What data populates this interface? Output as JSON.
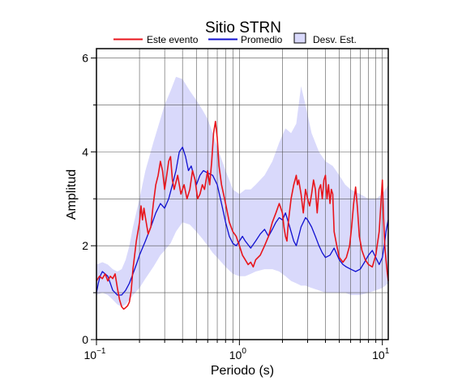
{
  "chart_data": {
    "type": "line",
    "title": "Sitio STRN",
    "xlabel": "Periodo (s)",
    "ylabel": "Amplitud",
    "x_scale": "log",
    "xlim": [
      0.1,
      11
    ],
    "ylim": [
      0,
      6.2
    ],
    "x_ticks": [
      {
        "value": 0.1,
        "base": "10",
        "exp": "−1"
      },
      {
        "value": 1,
        "base": "10",
        "exp": "0"
      },
      {
        "value": 10,
        "base": "10",
        "exp": "1"
      }
    ],
    "y_ticks": [
      0,
      2,
      4,
      6
    ],
    "grid": true,
    "legend_position": "top",
    "legend": [
      {
        "label": "Este evento",
        "kind": "line",
        "color": "#e8141b"
      },
      {
        "label": "Promedio",
        "kind": "line",
        "color": "#1010d0"
      },
      {
        "label": "Desv. Est.",
        "kind": "patch",
        "color": "#d9d9fb"
      }
    ],
    "band": {
      "name": "Desv. Est.",
      "color": "#d9d9fb",
      "points": [
        [
          0.1,
          0.95,
          1.6
        ],
        [
          0.11,
          1.0,
          1.65
        ],
        [
          0.12,
          0.95,
          1.6
        ],
        [
          0.13,
          0.85,
          1.5
        ],
        [
          0.14,
          0.75,
          1.45
        ],
        [
          0.15,
          0.7,
          1.5
        ],
        [
          0.16,
          0.75,
          1.7
        ],
        [
          0.17,
          0.85,
          2.0
        ],
        [
          0.18,
          0.95,
          2.4
        ],
        [
          0.2,
          1.1,
          3.0
        ],
        [
          0.22,
          1.3,
          3.6
        ],
        [
          0.25,
          1.55,
          4.2
        ],
        [
          0.28,
          1.8,
          4.7
        ],
        [
          0.3,
          1.9,
          5.0
        ],
        [
          0.33,
          2.05,
          5.3
        ],
        [
          0.36,
          2.3,
          5.6
        ],
        [
          0.4,
          2.5,
          5.55
        ],
        [
          0.45,
          2.45,
          5.3
        ],
        [
          0.5,
          2.3,
          5.1
        ],
        [
          0.55,
          2.15,
          4.9
        ],
        [
          0.6,
          2.0,
          4.7
        ],
        [
          0.65,
          1.85,
          4.4
        ],
        [
          0.7,
          1.75,
          4.1
        ],
        [
          0.8,
          1.55,
          3.6
        ],
        [
          0.9,
          1.4,
          3.2
        ],
        [
          1.0,
          1.35,
          3.1
        ],
        [
          1.1,
          1.35,
          3.2
        ],
        [
          1.2,
          1.4,
          3.2
        ],
        [
          1.3,
          1.45,
          3.3
        ],
        [
          1.5,
          1.5,
          3.5
        ],
        [
          1.7,
          1.5,
          3.8
        ],
        [
          1.9,
          1.45,
          4.2
        ],
        [
          2.1,
          1.35,
          4.5
        ],
        [
          2.3,
          1.25,
          4.4
        ],
        [
          2.5,
          1.2,
          4.6
        ],
        [
          2.7,
          1.15,
          5.4
        ],
        [
          2.9,
          1.15,
          5.0
        ],
        [
          3.2,
          1.1,
          4.4
        ],
        [
          3.6,
          1.05,
          4.0
        ],
        [
          4.0,
          1.0,
          3.8
        ],
        [
          4.5,
          1.0,
          3.7
        ],
        [
          5.0,
          1.0,
          3.5
        ],
        [
          5.5,
          1.0,
          3.3
        ],
        [
          6.0,
          0.95,
          3.2
        ],
        [
          7.0,
          0.95,
          3.1
        ],
        [
          8.0,
          1.0,
          3.0
        ],
        [
          9.0,
          1.05,
          3.0
        ],
        [
          10.0,
          1.1,
          3.1
        ],
        [
          11.0,
          1.2,
          3.3
        ]
      ]
    },
    "series": [
      {
        "name": "Este evento",
        "color": "#e8141b",
        "points": [
          [
            0.1,
            1.25
          ],
          [
            0.105,
            1.35
          ],
          [
            0.11,
            1.3
          ],
          [
            0.115,
            1.4
          ],
          [
            0.12,
            1.25
          ],
          [
            0.125,
            1.35
          ],
          [
            0.13,
            1.3
          ],
          [
            0.135,
            1.4
          ],
          [
            0.14,
            1.1
          ],
          [
            0.145,
            0.85
          ],
          [
            0.15,
            0.7
          ],
          [
            0.155,
            0.65
          ],
          [
            0.16,
            0.68
          ],
          [
            0.165,
            0.72
          ],
          [
            0.17,
            0.8
          ],
          [
            0.175,
            1.05
          ],
          [
            0.18,
            1.5
          ],
          [
            0.185,
            1.8
          ],
          [
            0.19,
            2.1
          ],
          [
            0.2,
            2.5
          ],
          [
            0.205,
            2.85
          ],
          [
            0.21,
            2.55
          ],
          [
            0.215,
            2.8
          ],
          [
            0.22,
            2.6
          ],
          [
            0.23,
            2.25
          ],
          [
            0.24,
            2.4
          ],
          [
            0.25,
            2.9
          ],
          [
            0.26,
            3.3
          ],
          [
            0.27,
            3.5
          ],
          [
            0.28,
            3.8
          ],
          [
            0.29,
            3.6
          ],
          [
            0.3,
            3.2
          ],
          [
            0.31,
            3.5
          ],
          [
            0.32,
            3.8
          ],
          [
            0.33,
            3.9
          ],
          [
            0.34,
            3.4
          ],
          [
            0.35,
            3.2
          ],
          [
            0.37,
            3.5
          ],
          [
            0.39,
            3.1
          ],
          [
            0.41,
            3.3
          ],
          [
            0.43,
            3.0
          ],
          [
            0.45,
            3.2
          ],
          [
            0.47,
            3.6
          ],
          [
            0.49,
            3.4
          ],
          [
            0.51,
            3.0
          ],
          [
            0.53,
            3.1
          ],
          [
            0.55,
            3.3
          ],
          [
            0.57,
            3.2
          ],
          [
            0.6,
            3.6
          ],
          [
            0.62,
            3.3
          ],
          [
            0.64,
            3.8
          ],
          [
            0.66,
            4.4
          ],
          [
            0.68,
            4.65
          ],
          [
            0.7,
            4.3
          ],
          [
            0.72,
            3.7
          ],
          [
            0.75,
            3.3
          ],
          [
            0.8,
            2.9
          ],
          [
            0.85,
            2.5
          ],
          [
            0.9,
            2.3
          ],
          [
            0.95,
            2.2
          ],
          [
            1.0,
            2.0
          ],
          [
            1.05,
            1.8
          ],
          [
            1.1,
            1.7
          ],
          [
            1.15,
            1.6
          ],
          [
            1.2,
            1.65
          ],
          [
            1.25,
            1.55
          ],
          [
            1.3,
            1.7
          ],
          [
            1.4,
            1.8
          ],
          [
            1.5,
            2.0
          ],
          [
            1.6,
            2.2
          ],
          [
            1.7,
            2.5
          ],
          [
            1.8,
            2.7
          ],
          [
            1.9,
            2.9
          ],
          [
            2.0,
            2.7
          ],
          [
            2.05,
            2.4
          ],
          [
            2.1,
            2.2
          ],
          [
            2.15,
            2.1
          ],
          [
            2.2,
            2.5
          ],
          [
            2.3,
            3.0
          ],
          [
            2.4,
            3.3
          ],
          [
            2.5,
            3.5
          ],
          [
            2.55,
            3.3
          ],
          [
            2.6,
            3.4
          ],
          [
            2.7,
            3.1
          ],
          [
            2.8,
            2.7
          ],
          [
            2.9,
            3.2
          ],
          [
            3.0,
            3.0
          ],
          [
            3.1,
            2.85
          ],
          [
            3.2,
            3.1
          ],
          [
            3.3,
            3.4
          ],
          [
            3.4,
            3.2
          ],
          [
            3.5,
            2.7
          ],
          [
            3.6,
            3.2
          ],
          [
            3.7,
            3.3
          ],
          [
            3.8,
            3.0
          ],
          [
            3.9,
            3.4
          ],
          [
            4.0,
            3.5
          ],
          [
            4.1,
            3.0
          ],
          [
            4.2,
            3.3
          ],
          [
            4.3,
            2.9
          ],
          [
            4.4,
            3.2
          ],
          [
            4.5,
            3.1
          ],
          [
            4.6,
            2.3
          ],
          [
            4.8,
            2.0
          ],
          [
            5.0,
            1.75
          ],
          [
            5.3,
            1.65
          ],
          [
            5.6,
            1.75
          ],
          [
            5.9,
            2.0
          ],
          [
            6.1,
            2.4
          ],
          [
            6.3,
            2.9
          ],
          [
            6.5,
            3.25
          ],
          [
            6.7,
            2.8
          ],
          [
            6.9,
            2.2
          ],
          [
            7.2,
            1.9
          ],
          [
            7.6,
            1.7
          ],
          [
            8.0,
            1.6
          ],
          [
            8.5,
            1.55
          ],
          [
            9.0,
            1.8
          ],
          [
            9.5,
            2.3
          ],
          [
            10.0,
            3.4
          ],
          [
            10.2,
            2.6
          ],
          [
            10.4,
            2.0
          ],
          [
            10.6,
            1.7
          ],
          [
            10.8,
            1.45
          ],
          [
            11.0,
            1.25
          ]
        ]
      },
      {
        "name": "Promedio",
        "color": "#1010d0",
        "points": [
          [
            0.1,
            1.0
          ],
          [
            0.103,
            1.2
          ],
          [
            0.106,
            1.35
          ],
          [
            0.11,
            1.45
          ],
          [
            0.115,
            1.4
          ],
          [
            0.12,
            1.35
          ],
          [
            0.125,
            1.2
          ],
          [
            0.13,
            1.05
          ],
          [
            0.135,
            1.0
          ],
          [
            0.14,
            0.95
          ],
          [
            0.15,
            0.95
          ],
          [
            0.16,
            1.05
          ],
          [
            0.17,
            1.2
          ],
          [
            0.18,
            1.4
          ],
          [
            0.19,
            1.6
          ],
          [
            0.2,
            1.8
          ],
          [
            0.22,
            2.1
          ],
          [
            0.24,
            2.4
          ],
          [
            0.26,
            2.7
          ],
          [
            0.28,
            2.9
          ],
          [
            0.3,
            2.8
          ],
          [
            0.32,
            3.0
          ],
          [
            0.34,
            3.3
          ],
          [
            0.36,
            3.6
          ],
          [
            0.38,
            4.0
          ],
          [
            0.4,
            4.1
          ],
          [
            0.42,
            3.9
          ],
          [
            0.44,
            3.6
          ],
          [
            0.46,
            3.7
          ],
          [
            0.48,
            3.5
          ],
          [
            0.5,
            3.3
          ],
          [
            0.53,
            3.5
          ],
          [
            0.56,
            3.6
          ],
          [
            0.6,
            3.55
          ],
          [
            0.65,
            3.5
          ],
          [
            0.7,
            3.3
          ],
          [
            0.75,
            2.9
          ],
          [
            0.8,
            2.5
          ],
          [
            0.85,
            2.2
          ],
          [
            0.9,
            2.05
          ],
          [
            0.95,
            2.0
          ],
          [
            1.0,
            2.1
          ],
          [
            1.05,
            2.2
          ],
          [
            1.1,
            2.1
          ],
          [
            1.2,
            1.95
          ],
          [
            1.3,
            2.1
          ],
          [
            1.4,
            2.25
          ],
          [
            1.5,
            2.35
          ],
          [
            1.6,
            2.2
          ],
          [
            1.7,
            2.35
          ],
          [
            1.8,
            2.5
          ],
          [
            1.9,
            2.6
          ],
          [
            2.0,
            2.55
          ],
          [
            2.1,
            2.7
          ],
          [
            2.2,
            2.5
          ],
          [
            2.3,
            2.3
          ],
          [
            2.4,
            2.1
          ],
          [
            2.5,
            2.0
          ],
          [
            2.6,
            2.2
          ],
          [
            2.7,
            2.4
          ],
          [
            2.8,
            2.5
          ],
          [
            2.9,
            2.6
          ],
          [
            3.0,
            2.55
          ],
          [
            3.2,
            2.4
          ],
          [
            3.4,
            2.2
          ],
          [
            3.6,
            2.0
          ],
          [
            3.8,
            1.85
          ],
          [
            4.0,
            1.75
          ],
          [
            4.3,
            1.8
          ],
          [
            4.6,
            1.95
          ],
          [
            5.0,
            1.7
          ],
          [
            5.3,
            1.6
          ],
          [
            5.6,
            1.55
          ],
          [
            6.0,
            1.5
          ],
          [
            6.5,
            1.45
          ],
          [
            7.0,
            1.5
          ],
          [
            7.5,
            1.65
          ],
          [
            8.0,
            1.8
          ],
          [
            8.5,
            1.9
          ],
          [
            9.0,
            1.75
          ],
          [
            9.5,
            1.6
          ],
          [
            10.0,
            1.75
          ],
          [
            10.3,
            2.0
          ],
          [
            10.6,
            2.3
          ],
          [
            11.0,
            2.55
          ]
        ]
      }
    ]
  }
}
